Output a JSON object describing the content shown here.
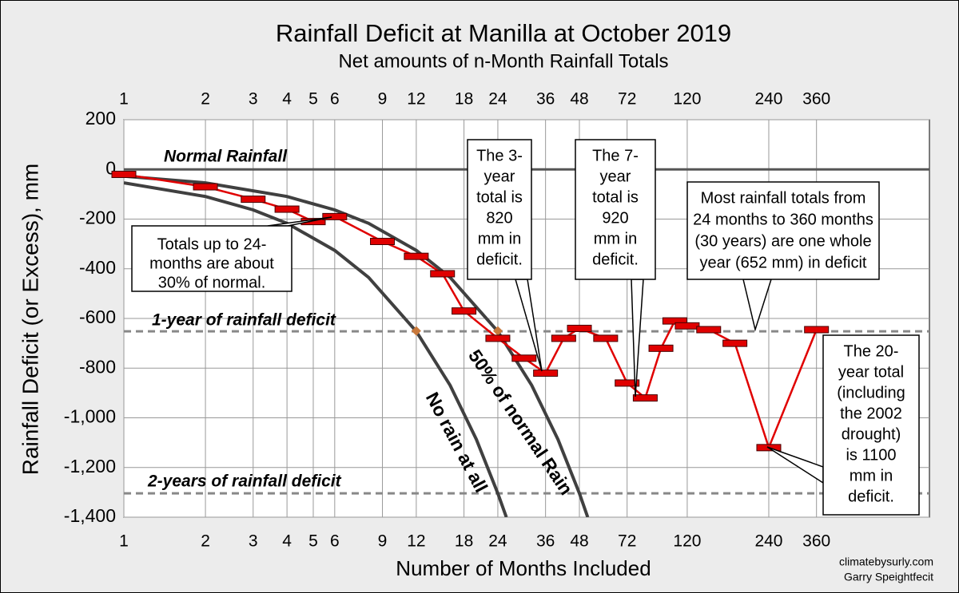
{
  "chart_data": {
    "type": "line",
    "title": "Rainfall Deficit at Manilla at October 2019",
    "subtitle": "Net amounts of n-Month Rainfall Totals",
    "x_label": "Number of Months Included",
    "y_label": "Rainfall Deficit (or Excess), mm",
    "xscale": "log",
    "xlim": [
      1,
      940
    ],
    "xticks": [
      1,
      2,
      3,
      4,
      5,
      6,
      9,
      12,
      18,
      24,
      36,
      48,
      72,
      120,
      240,
      360
    ],
    "ylim": [
      -1400,
      200
    ],
    "yticks": [
      200,
      0,
      -200,
      -400,
      -600,
      -800,
      {
        "value": -1000,
        "label": "-1,000"
      },
      {
        "value": -1200,
        "label": "-1,200"
      },
      {
        "value": -1400,
        "label": "-1,400"
      }
    ],
    "grid": true,
    "series": [
      {
        "color": "#e00000",
        "x": [
          1,
          2,
          3,
          4,
          5,
          6,
          9,
          12,
          15,
          18,
          24,
          30,
          36,
          42,
          48,
          60,
          72,
          84,
          96,
          108,
          120,
          144,
          180,
          240,
          360
        ],
        "values": [
          -20,
          -70,
          -120,
          -160,
          -210,
          -190,
          -290,
          -350,
          -420,
          -570,
          -680,
          -760,
          -820,
          -680,
          -640,
          -680,
          -860,
          -920,
          -720,
          -610,
          -630,
          -645,
          -700,
          -1120,
          -645
        ]
      }
    ],
    "curves": [
      {
        "label": "No rain at all",
        "color": "#404040",
        "x": [
          1,
          2,
          3,
          4,
          6,
          8,
          12,
          16,
          20,
          24,
          25.8
        ],
        "values": [
          -54,
          -109,
          -163,
          -217,
          -326,
          -435,
          -652,
          -869,
          -1087,
          -1304,
          -1400
        ]
      },
      {
        "label": "50% of normal Rain",
        "color": "#404040",
        "x": [
          1,
          2,
          4,
          6,
          8,
          12,
          16,
          24,
          32,
          40,
          48,
          51.5
        ],
        "values": [
          -27,
          -54,
          -109,
          -163,
          -217,
          -326,
          -435,
          -652,
          -869,
          -1087,
          -1304,
          -1400
        ]
      }
    ],
    "reference_lines": [
      {
        "label": "Normal Rainfall",
        "value": 0,
        "dashed": false
      },
      {
        "label": "1-year of rainfall deficit",
        "value": -652,
        "dashed": true
      },
      {
        "label": "2-years of rainfall deficit",
        "value": -1304,
        "dashed": true
      }
    ],
    "highlight_points": {
      "color": "#c8783a",
      "x": [
        12,
        24
      ],
      "values": [
        -650,
        -650
      ]
    },
    "annotations": [
      {
        "lines": [
          "Totals up to 24-",
          "months are about",
          "30% of normal."
        ]
      },
      {
        "lines": [
          "The 3-",
          "year",
          "total is",
          "820",
          "mm in",
          "deficit."
        ]
      },
      {
        "lines": [
          "The 7-",
          "year",
          "total is",
          "920",
          "mm in",
          "deficit."
        ]
      },
      {
        "lines": [
          "Most rainfall totals from",
          "24 months to 360 months",
          "(30 years) are one whole",
          "year (652 mm) in deficit"
        ]
      },
      {
        "lines": [
          "The 20-",
          "year total",
          "(including",
          "the 2002",
          "drought)",
          "is 1100",
          "mm in",
          "deficit."
        ]
      }
    ],
    "credits": [
      "climatebysurly.com",
      "Garry Speightfecit"
    ]
  }
}
